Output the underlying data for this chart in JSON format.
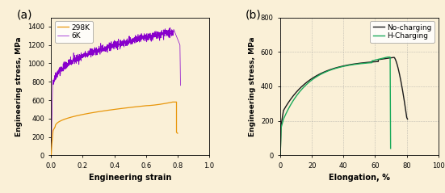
{
  "background_color": "#faf0d7",
  "panel_a": {
    "xlabel": "Engineering strain",
    "ylabel": "Engineering stress, MPa",
    "xlim": [
      0,
      1.0
    ],
    "ylim": [
      0,
      1500
    ],
    "xticks": [
      0.0,
      0.2,
      0.4,
      0.6,
      0.8,
      1.0
    ],
    "yticks": [
      0,
      200,
      400,
      600,
      800,
      1000,
      1200,
      1400
    ],
    "label_a": "(a)",
    "curve_298K": {
      "color": "#E8960A",
      "label": "298K"
    },
    "curve_6K": {
      "color": "#8800CC",
      "label": "6K"
    }
  },
  "panel_b": {
    "xlabel": "Elongation, %",
    "ylabel": "Engineering stress, MPa",
    "xlim": [
      0,
      100
    ],
    "ylim": [
      0,
      800
    ],
    "xticks": [
      0,
      20,
      40,
      60,
      80,
      100
    ],
    "yticks": [
      0,
      200,
      400,
      600,
      800
    ],
    "label_b": "(b)",
    "curve_no_charging": {
      "color": "#1a1a1a",
      "label": "No-charging"
    },
    "curve_h_charging": {
      "color": "#1aaa5a",
      "label": "H-Charging"
    }
  }
}
